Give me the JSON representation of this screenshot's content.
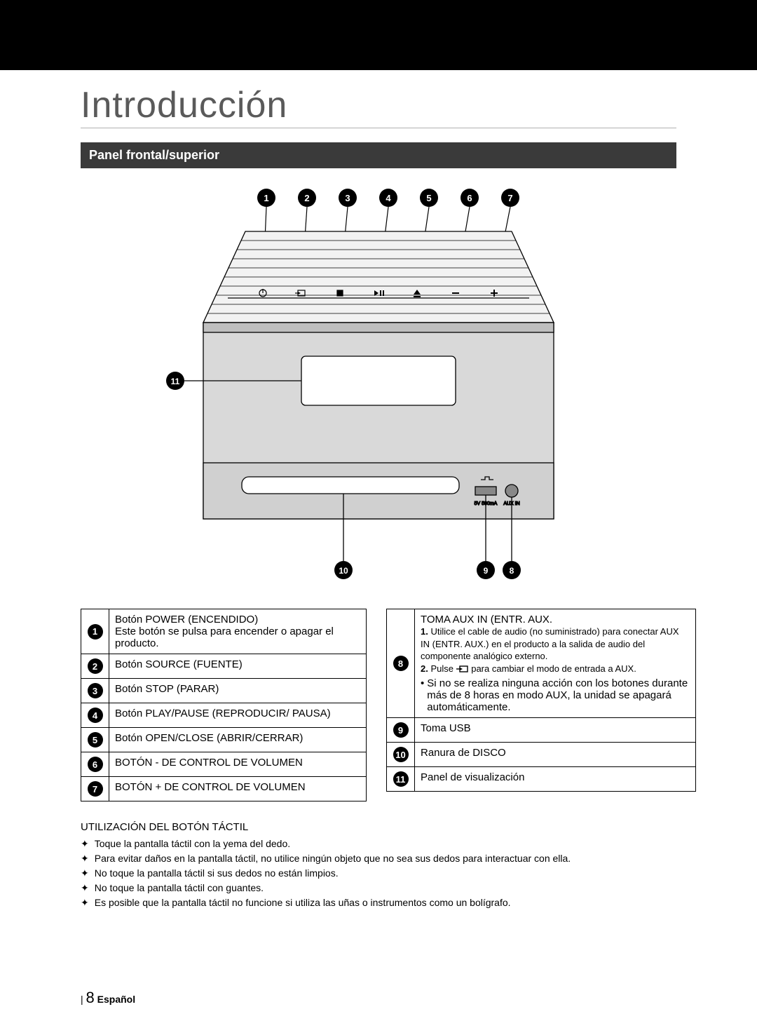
{
  "page": {
    "section_title": "Introducción",
    "subhead": "Panel frontal/superior",
    "footer_page": "8",
    "footer_lang": "Español"
  },
  "diagram": {
    "colors": {
      "outline": "#000000",
      "body_fill": "#d9d9d9",
      "top_fill": "#f2f2f2",
      "slot_fill": "#ffffff",
      "bg": "#ffffff",
      "callout": "#000000"
    },
    "callouts_top": [
      {
        "n": "1",
        "icon": "power"
      },
      {
        "n": "2",
        "icon": "source"
      },
      {
        "n": "3",
        "icon": "stop"
      },
      {
        "n": "4",
        "icon": "playpause"
      },
      {
        "n": "5",
        "icon": "eject"
      },
      {
        "n": "6",
        "icon": "minus"
      },
      {
        "n": "7",
        "icon": "plus"
      }
    ],
    "callouts_side": {
      "n": "11"
    },
    "callouts_bottom": [
      {
        "n": "10"
      },
      {
        "n": "9"
      },
      {
        "n": "8"
      }
    ],
    "port_labels": {
      "usb": "5V 500mA",
      "aux": "AUX IN"
    }
  },
  "legend_left": [
    {
      "n": "1",
      "title": "Botón POWER (ENCENDIDO)",
      "detail": "Este botón se pulsa para encender o apagar el producto."
    },
    {
      "n": "2",
      "title": "Botón SOURCE (FUENTE)"
    },
    {
      "n": "3",
      "title": "Botón STOP (PARAR)"
    },
    {
      "n": "4",
      "title": "Botón PLAY/PAUSE (REPRODUCIR/ PAUSA)"
    },
    {
      "n": "5",
      "title": "Botón OPEN/CLOSE (ABRIR/CERRAR)"
    },
    {
      "n": "6",
      "title": "BOTÓN - DE CONTROL DE VOLUMEN"
    },
    {
      "n": "7",
      "title": "BOTÓN + DE CONTROL DE VOLUMEN"
    }
  ],
  "legend_right": [
    {
      "n": "8",
      "title": "TOMA AUX IN (ENTR. AUX.",
      "lines": [
        {
          "b": "1.",
          "t": "Utilice el cable de audio (no suministrado) para conectar AUX IN (ENTR. AUX.) en el producto a la salida de audio del componente analógico externo."
        },
        {
          "b": "2.",
          "t": "Pulse �มี para cambiar el modo de entrada a AUX.",
          "icon": "source-inline"
        }
      ],
      "bullet": "Si no se realiza ninguna acción con los botones durante más de 8 horas en modo AUX, la unidad se apagará automáticamente."
    },
    {
      "n": "9",
      "title": "Toma USB"
    },
    {
      "n": "10",
      "title": "Ranura de DISCO"
    },
    {
      "n": "11",
      "title": "Panel de visualización"
    }
  ],
  "touch": {
    "title": "UTILIZACIÓN DEL BOTÓN TÁCTIL",
    "items": [
      "Toque la pantalla táctil con la yema del dedo.",
      "Para evitar daños en la pantalla táctil, no utilice ningún objeto que no sea sus dedos para interactuar con ella.",
      "No toque la pantalla táctil si sus dedos no están limpios.",
      "No toque la pantalla táctil con guantes.",
      "Es posible que la pantalla táctil no funcione si utiliza las uñas o instrumentos como un bolígrafo."
    ]
  }
}
